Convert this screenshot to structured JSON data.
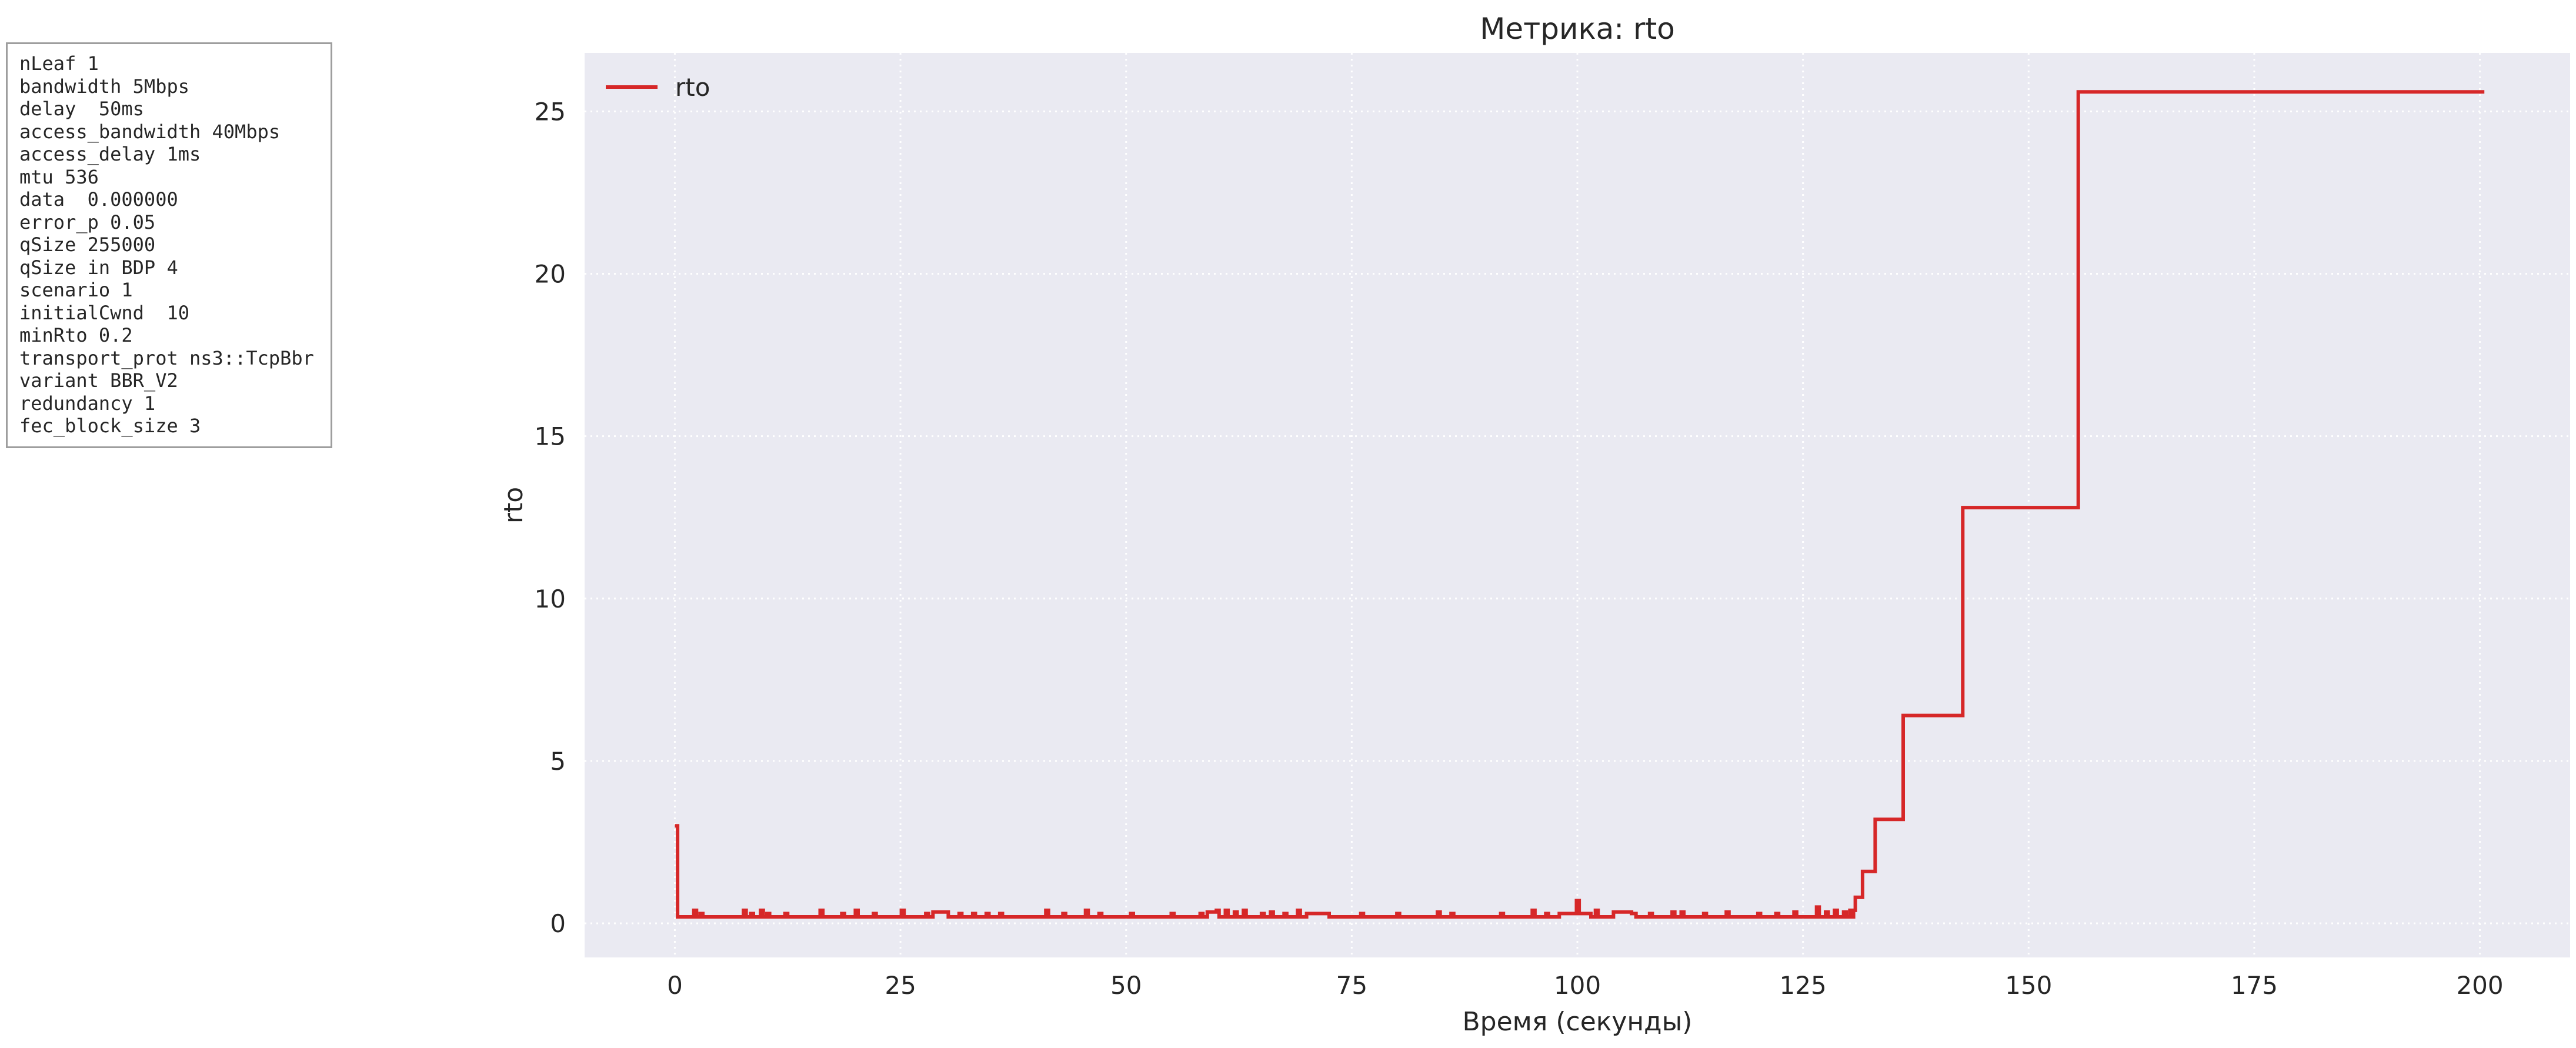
{
  "params": [
    "nLeaf 1",
    "bandwidth 5Mbps",
    "delay  50ms",
    "access_bandwidth 40Mbps",
    "access_delay 1ms",
    "mtu 536",
    "data  0.000000",
    "error_p 0.05",
    "qSize 255000",
    "qSize in BDP 4",
    "scenario 1",
    "initialCwnd  10",
    "minRto 0.2",
    "transport_prot ns3::TcpBbr",
    "variant BBR_V2",
    "redundancy 1",
    "fec_block_size 3"
  ],
  "colors": {
    "plot_background": "#eaeaf2",
    "grid": "#ffffff",
    "series": "#d62728",
    "text": "#262626"
  },
  "chart_data": {
    "type": "line",
    "title": "Метрика: rto",
    "xlabel": "Время (секунды)",
    "ylabel": "rto",
    "xlim": [
      -10,
      210
    ],
    "ylim": [
      -1.05,
      26.8
    ],
    "xticks": [
      0,
      25,
      50,
      75,
      100,
      125,
      150,
      175,
      200
    ],
    "yticks": [
      0,
      5,
      10,
      15,
      20,
      25
    ],
    "grid": true,
    "grid_style": "dotted",
    "legend": "top-left",
    "step": true,
    "series": [
      {
        "name": "rto",
        "color": "#d62728",
        "points": [
          [
            0.0,
            3.0
          ],
          [
            0.3,
            0.2
          ],
          [
            2.0,
            0.2
          ],
          [
            2.1,
            0.4
          ],
          [
            2.4,
            0.2
          ],
          [
            2.8,
            0.3
          ],
          [
            3.1,
            0.2
          ],
          [
            7.5,
            0.2
          ],
          [
            7.6,
            0.4
          ],
          [
            7.9,
            0.2
          ],
          [
            8.4,
            0.3
          ],
          [
            8.7,
            0.2
          ],
          [
            9.5,
            0.4
          ],
          [
            9.8,
            0.2
          ],
          [
            10.2,
            0.3
          ],
          [
            10.5,
            0.2
          ],
          [
            12.2,
            0.3
          ],
          [
            12.5,
            0.2
          ],
          [
            16.0,
            0.2
          ],
          [
            16.1,
            0.4
          ],
          [
            16.4,
            0.2
          ],
          [
            18.5,
            0.3
          ],
          [
            18.8,
            0.2
          ],
          [
            20.0,
            0.4
          ],
          [
            20.3,
            0.2
          ],
          [
            22.0,
            0.3
          ],
          [
            22.3,
            0.2
          ],
          [
            25.0,
            0.2
          ],
          [
            25.1,
            0.4
          ],
          [
            25.4,
            0.2
          ],
          [
            27.8,
            0.3
          ],
          [
            28.1,
            0.2
          ],
          [
            28.6,
            0.35
          ],
          [
            30.0,
            0.35
          ],
          [
            30.3,
            0.2
          ],
          [
            31.5,
            0.3
          ],
          [
            31.8,
            0.2
          ],
          [
            33.0,
            0.3
          ],
          [
            33.3,
            0.2
          ],
          [
            34.5,
            0.3
          ],
          [
            34.8,
            0.2
          ],
          [
            36.0,
            0.3
          ],
          [
            36.3,
            0.2
          ],
          [
            41.0,
            0.2
          ],
          [
            41.1,
            0.4
          ],
          [
            41.4,
            0.2
          ],
          [
            43.0,
            0.3
          ],
          [
            43.3,
            0.2
          ],
          [
            45.5,
            0.4
          ],
          [
            45.8,
            0.2
          ],
          [
            47.0,
            0.3
          ],
          [
            47.3,
            0.2
          ],
          [
            50.5,
            0.3
          ],
          [
            50.8,
            0.2
          ],
          [
            55.0,
            0.3
          ],
          [
            55.3,
            0.2
          ],
          [
            58.2,
            0.3
          ],
          [
            58.5,
            0.2
          ],
          [
            59.0,
            0.35
          ],
          [
            60.0,
            0.4
          ],
          [
            60.3,
            0.2
          ],
          [
            61.0,
            0.4
          ],
          [
            61.3,
            0.2
          ],
          [
            62.0,
            0.35
          ],
          [
            62.3,
            0.2
          ],
          [
            63.0,
            0.4
          ],
          [
            63.3,
            0.2
          ],
          [
            65.0,
            0.3
          ],
          [
            65.3,
            0.2
          ],
          [
            66.0,
            0.35
          ],
          [
            66.3,
            0.2
          ],
          [
            67.5,
            0.3
          ],
          [
            67.8,
            0.2
          ],
          [
            69.0,
            0.4
          ],
          [
            69.3,
            0.2
          ],
          [
            70.0,
            0.3
          ],
          [
            72.0,
            0.3
          ],
          [
            72.5,
            0.2
          ],
          [
            76.0,
            0.3
          ],
          [
            76.3,
            0.2
          ],
          [
            80.0,
            0.3
          ],
          [
            80.3,
            0.2
          ],
          [
            84.5,
            0.35
          ],
          [
            84.8,
            0.2
          ],
          [
            86.0,
            0.3
          ],
          [
            86.3,
            0.2
          ],
          [
            91.5,
            0.3
          ],
          [
            91.8,
            0.2
          ],
          [
            95.0,
            0.4
          ],
          [
            95.3,
            0.2
          ],
          [
            96.5,
            0.3
          ],
          [
            96.8,
            0.2
          ],
          [
            98.0,
            0.3
          ],
          [
            99.0,
            0.3
          ],
          [
            99.9,
            0.7
          ],
          [
            100.2,
            0.3
          ],
          [
            101.5,
            0.2
          ],
          [
            102.0,
            0.4
          ],
          [
            102.3,
            0.2
          ],
          [
            104.0,
            0.35
          ],
          [
            105.0,
            0.35
          ],
          [
            106.0,
            0.3
          ],
          [
            106.5,
            0.2
          ],
          [
            108.0,
            0.3
          ],
          [
            108.3,
            0.2
          ],
          [
            110.5,
            0.35
          ],
          [
            110.8,
            0.2
          ],
          [
            111.5,
            0.35
          ],
          [
            111.8,
            0.2
          ],
          [
            114.0,
            0.3
          ],
          [
            114.3,
            0.2
          ],
          [
            116.5,
            0.35
          ],
          [
            116.8,
            0.2
          ],
          [
            120.0,
            0.3
          ],
          [
            120.3,
            0.2
          ],
          [
            122.0,
            0.3
          ],
          [
            122.3,
            0.2
          ],
          [
            124.0,
            0.35
          ],
          [
            124.3,
            0.2
          ],
          [
            126.5,
            0.5
          ],
          [
            126.8,
            0.2
          ],
          [
            127.5,
            0.35
          ],
          [
            127.8,
            0.2
          ],
          [
            128.5,
            0.4
          ],
          [
            128.8,
            0.2
          ],
          [
            129.5,
            0.35
          ],
          [
            129.8,
            0.2
          ],
          [
            130.2,
            0.4
          ],
          [
            130.5,
            0.2
          ],
          [
            130.6,
            0.4
          ],
          [
            130.8,
            0.8
          ],
          [
            131.6,
            1.6
          ],
          [
            133.0,
            3.2
          ],
          [
            136.1,
            6.4
          ],
          [
            142.7,
            12.8
          ],
          [
            155.5,
            25.6
          ],
          [
            200.5,
            25.6
          ]
        ]
      }
    ]
  }
}
